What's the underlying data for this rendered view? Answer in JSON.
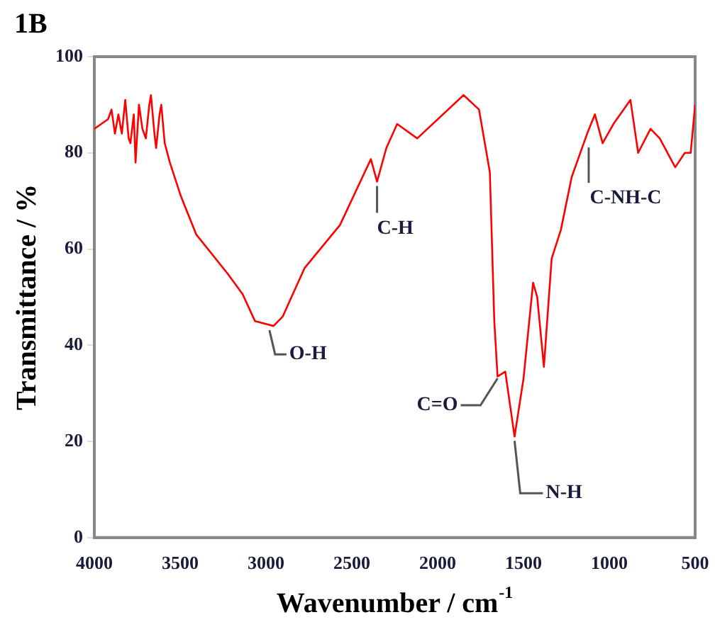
{
  "chart_data": {
    "type": "line",
    "title": "1B",
    "xlabel": "Wavenumber / cm$^{-1}$",
    "ylabel": "Transmittance / %",
    "xlim": [
      4000,
      500
    ],
    "ylim": [
      0,
      100
    ],
    "xticks": [
      4000,
      3500,
      3000,
      2500,
      2000,
      1500,
      1000,
      500
    ],
    "yticks": [
      0,
      20,
      40,
      60,
      80,
      100
    ],
    "grid": false,
    "legend": false,
    "marker": "none",
    "line_style": "solid",
    "series": [
      {
        "color": "#ff0000",
        "x": [
          4000,
          3960,
          3920,
          3900,
          3880,
          3860,
          3840,
          3820,
          3800,
          3790,
          3770,
          3760,
          3740,
          3720,
          3700,
          3680,
          3670,
          3650,
          3640,
          3620,
          3610,
          3590,
          3560,
          3496,
          3406,
          3226,
          3136,
          3064,
          2956,
          2902,
          2776,
          2569,
          2389,
          2353,
          2299,
          2236,
          2119,
          1849,
          1759,
          1696,
          1670,
          1651,
          1606,
          1552,
          1500,
          1444,
          1420,
          1381,
          1336,
          1282,
          1219,
          1129,
          1084,
          1039,
          976,
          877,
          832,
          760,
          706,
          616,
          560,
          526,
          500
        ],
        "values": [
          85,
          86,
          87,
          89,
          84,
          88,
          84,
          91,
          83,
          82,
          88,
          78,
          90,
          85,
          83,
          90,
          92,
          84,
          81,
          88,
          90,
          82,
          78,
          71,
          63,
          55,
          50.6,
          45,
          44,
          46,
          56,
          65,
          78.7,
          74,
          81,
          86,
          83,
          92,
          89,
          76,
          45,
          33.5,
          34.5,
          21,
          33,
          53,
          50,
          35.5,
          58,
          64,
          75,
          84,
          88,
          82,
          86,
          91,
          80,
          85,
          83,
          77,
          80,
          80,
          90
        ]
      }
    ],
    "annotations": [
      {
        "text": "O-H",
        "x": 2980,
        "y": 44
      },
      {
        "text": "C-H",
        "x": 2353,
        "y": 74
      },
      {
        "text": "C=O",
        "x": 1651,
        "y": 34
      },
      {
        "text": "N-H",
        "x": 1552,
        "y": 21
      },
      {
        "text": "C-NH-C",
        "x": 1120,
        "y": 82
      }
    ]
  }
}
